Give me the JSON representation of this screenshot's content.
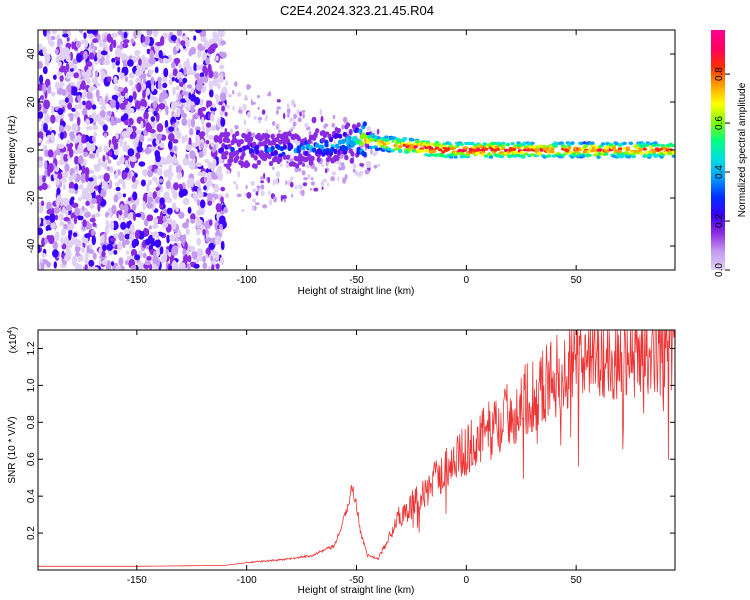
{
  "title": "C2E4.2024.323.21.45.R04",
  "colorbar": {
    "label": "Normalized spectral amplitude",
    "ticks": [
      "0.0",
      "0.2",
      "0.4",
      "0.6",
      "0.8"
    ],
    "colors": [
      "#e0d0f4",
      "#c49af0",
      "#8a2be2",
      "#3a00ff",
      "#0033ff",
      "#00a0ff",
      "#00e0e0",
      "#00ff80",
      "#80ff00",
      "#ffff00",
      "#ffa000",
      "#ff3000",
      "#ff0060",
      "#ff0090"
    ]
  },
  "chart_data": [
    {
      "type": "heatmap",
      "xlabel": "Height of straight line (km)",
      "ylabel": "Frequency (Hz)",
      "xlim": [
        -195,
        95
      ],
      "ylim": [
        -50,
        50
      ],
      "xticks": [
        "-150",
        "-100",
        "-50",
        "0",
        "50"
      ],
      "xtick_values": [
        -150,
        -100,
        -50,
        0,
        50
      ],
      "yticks": [
        "40",
        "20",
        "0",
        "-20",
        "-40"
      ],
      "ytick_values": [
        40,
        20,
        0,
        -20,
        -40
      ],
      "ridge": {
        "x": [
          -112,
          -100,
          -90,
          -80,
          -70,
          -60,
          -52,
          -45,
          -40,
          -30,
          -20,
          -10,
          -5,
          0,
          10,
          30,
          50,
          70,
          95
        ],
        "frequency": [
          0,
          0,
          0,
          0,
          1,
          2,
          4,
          4,
          3,
          2,
          1,
          0,
          0,
          0,
          0,
          0,
          0,
          0,
          0
        ],
        "amplitude": [
          0.3,
          0.35,
          0.4,
          0.45,
          0.45,
          0.5,
          0.55,
          0.8,
          0.8,
          0.9,
          0.95,
          0.95,
          0.9,
          0.95,
          0.95,
          0.92,
          0.9,
          0.88,
          0.88
        ]
      }
    },
    {
      "type": "line",
      "xlabel": "Height of straight line (km)",
      "ylabel": "SNR (10 * V/V)",
      "y_multiplier": "(x10",
      "y_multiplier_exp": "4",
      "y_multiplier_close": ")",
      "xlim": [
        -195,
        95
      ],
      "ylim": [
        0,
        1.3
      ],
      "xticks": [
        "-150",
        "-100",
        "-50",
        "0",
        "50"
      ],
      "xtick_values": [
        -150,
        -100,
        -50,
        0,
        50
      ],
      "yticks": [
        "0.2",
        "0.4",
        "0.6",
        "0.8",
        "1.0",
        "1.2"
      ],
      "ytick_values": [
        0.2,
        0.4,
        0.6,
        0.8,
        1.0,
        1.2
      ],
      "series": [
        {
          "color": "#ee3333",
          "x": [
            -195,
            -150,
            -110,
            -100,
            -90,
            -80,
            -70,
            -60,
            -55,
            -52,
            -50,
            -48,
            -45,
            -40,
            -35,
            -30,
            -20,
            -10,
            0,
            10,
            20,
            30,
            40,
            50,
            60,
            70,
            80,
            95
          ],
          "y": [
            0.02,
            0.02,
            0.025,
            0.04,
            0.05,
            0.06,
            0.08,
            0.13,
            0.3,
            0.45,
            0.35,
            0.2,
            0.08,
            0.06,
            0.2,
            0.3,
            0.4,
            0.55,
            0.65,
            0.75,
            0.85,
            0.95,
            1.05,
            1.12,
            1.15,
            1.18,
            1.2,
            1.22
          ]
        }
      ]
    }
  ]
}
